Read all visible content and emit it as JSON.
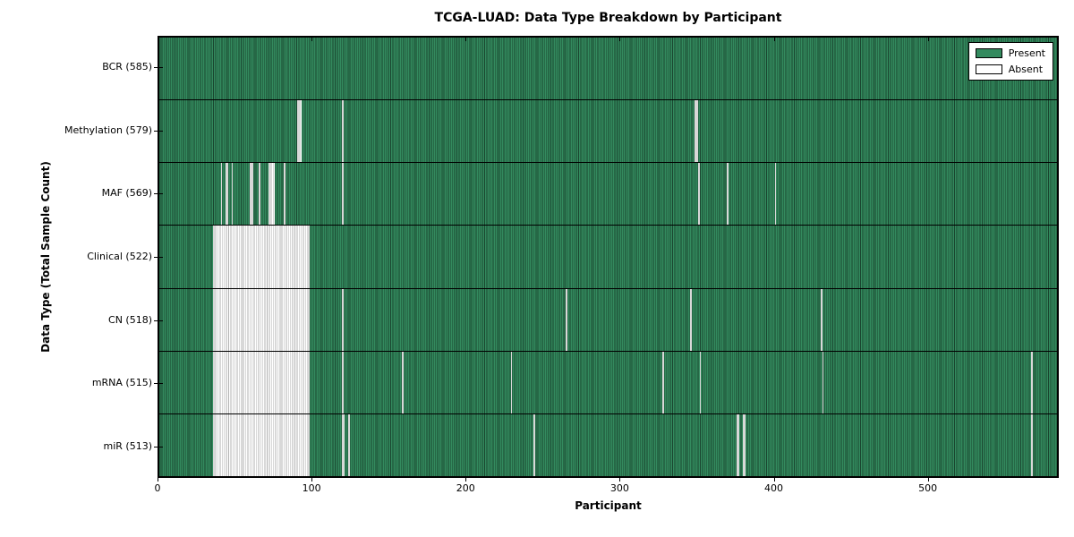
{
  "title": "TCGA-LUAD: Data Type Breakdown by Participant",
  "xlabel": "Participant",
  "ylabel": "Data Type (Total Sample Count)",
  "legend": {
    "present_label": "Present",
    "absent_label": "Absent"
  },
  "colors": {
    "present": "#338a5e",
    "absent": "#ffffff",
    "present_grid": "rgba(0,0,0,0.50)",
    "absent_grid": "rgba(0,0,0,0.30)",
    "axis": "#000000"
  },
  "chart_data": {
    "type": "heatmap",
    "title": "TCGA-LUAD: Data Type Breakdown by Participant",
    "xlabel": "Participant",
    "ylabel": "Data Type (Total Sample Count)",
    "legend_entries": [
      "Present",
      "Absent"
    ],
    "legend_position": "upper right",
    "n_participants": 585,
    "x_ticks": [
      0,
      100,
      200,
      300,
      400,
      500
    ],
    "x_range": [
      0,
      585
    ],
    "cell_values": "present=1 absent=0; absent_ranges are inclusive participant-index ranges, all other participants present",
    "rows": [
      {
        "name": "BCR",
        "label": "BCR (585)",
        "total_present": 585,
        "absent_ranges": []
      },
      {
        "name": "Methylation",
        "label": "Methylation (579)",
        "total_present": 579,
        "absent_ranges": [
          [
            90,
            92
          ],
          [
            119,
            119
          ],
          [
            349,
            350
          ]
        ]
      },
      {
        "name": "MAF",
        "label": "MAF (569)",
        "total_present": 569,
        "absent_ranges": [
          [
            40,
            40
          ],
          [
            43,
            44
          ],
          [
            47,
            47
          ],
          [
            59,
            60
          ],
          [
            65,
            65
          ],
          [
            71,
            74
          ],
          [
            81,
            81
          ],
          [
            119,
            119
          ],
          [
            351,
            351
          ],
          [
            370,
            370
          ],
          [
            401,
            401
          ]
        ]
      },
      {
        "name": "Clinical",
        "label": "Clinical (522)",
        "total_present": 522,
        "absent_ranges": [
          [
            35,
            97
          ]
        ]
      },
      {
        "name": "CN",
        "label": "CN (518)",
        "total_present": 518,
        "absent_ranges": [
          [
            35,
            97
          ],
          [
            119,
            119
          ],
          [
            265,
            265
          ],
          [
            346,
            346
          ],
          [
            431,
            431
          ]
        ]
      },
      {
        "name": "mRNA",
        "label": "mRNA (515)",
        "total_present": 515,
        "absent_ranges": [
          [
            35,
            97
          ],
          [
            119,
            119
          ],
          [
            158,
            158
          ],
          [
            229,
            229
          ],
          [
            328,
            328
          ],
          [
            352,
            352
          ],
          [
            432,
            432
          ],
          [
            568,
            568
          ]
        ]
      },
      {
        "name": "miR",
        "label": "miR (513)",
        "total_present": 513,
        "absent_ranges": [
          [
            35,
            97
          ],
          [
            119,
            120
          ],
          [
            123,
            123
          ],
          [
            244,
            244
          ],
          [
            376,
            377
          ],
          [
            380,
            381
          ],
          [
            568,
            568
          ]
        ]
      }
    ]
  }
}
